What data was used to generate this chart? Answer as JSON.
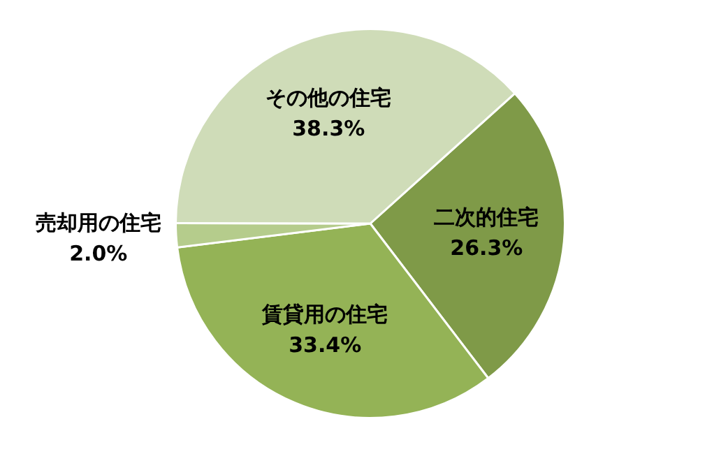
{
  "chart_data": {
    "type": "pie",
    "categories": [
      "二次的住宅",
      "賃貸用の住宅",
      "売却用の住宅",
      "その他の住宅"
    ],
    "values": [
      26.3,
      33.4,
      2.0,
      38.3
    ],
    "colors": [
      "#7f9a48",
      "#94b356",
      "#b5cc8c",
      "#cfdcb8"
    ],
    "value_labels": [
      "26.3%",
      "33.4%",
      "2.0%",
      "38.3%"
    ],
    "legend": false
  }
}
